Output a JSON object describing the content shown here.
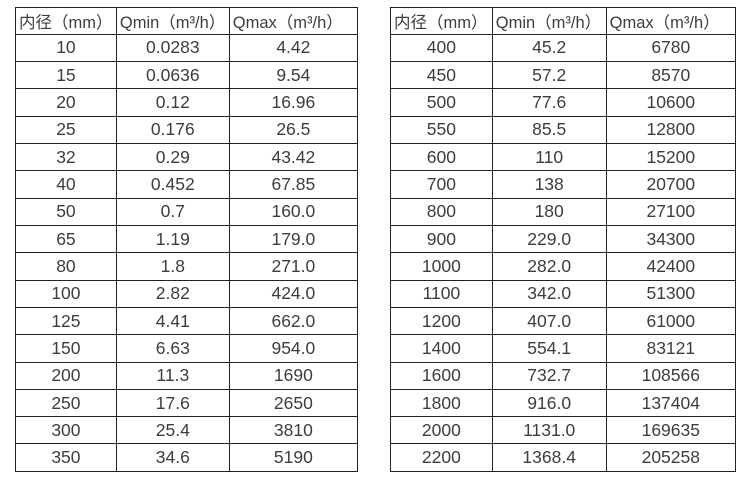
{
  "chart_data": [
    {
      "type": "table",
      "name": "flow-range-table-small-diameters",
      "columns": [
        "内径（mm）",
        "Qmin（m³/h）",
        "Qmax（m³/h）"
      ],
      "rows": [
        [
          "10",
          "0.0283",
          "4.42"
        ],
        [
          "15",
          "0.0636",
          "9.54"
        ],
        [
          "20",
          "0.12",
          "16.96"
        ],
        [
          "25",
          "0.176",
          "26.5"
        ],
        [
          "32",
          "0.29",
          "43.42"
        ],
        [
          "40",
          "0.452",
          "67.85"
        ],
        [
          "50",
          "0.7",
          "160.0"
        ],
        [
          "65",
          "1.19",
          "179.0"
        ],
        [
          "80",
          "1.8",
          "271.0"
        ],
        [
          "100",
          "2.82",
          "424.0"
        ],
        [
          "125",
          "4.41",
          "662.0"
        ],
        [
          "150",
          "6.63",
          "954.0"
        ],
        [
          "200",
          "11.3",
          "1690"
        ],
        [
          "250",
          "17.6",
          "2650"
        ],
        [
          "300",
          "25.4",
          "3810"
        ],
        [
          "350",
          "34.6",
          "5190"
        ]
      ]
    },
    {
      "type": "table",
      "name": "flow-range-table-large-diameters",
      "columns": [
        "内径（mm）",
        "Qmin（m³/h）",
        "Qmax（m³/h）"
      ],
      "rows": [
        [
          "400",
          "45.2",
          "6780"
        ],
        [
          "450",
          "57.2",
          "8570"
        ],
        [
          "500",
          "77.6",
          "10600"
        ],
        [
          "550",
          "85.5",
          "12800"
        ],
        [
          "600",
          "110",
          "15200"
        ],
        [
          "700",
          "138",
          "20700"
        ],
        [
          "800",
          "180",
          "27100"
        ],
        [
          "900",
          "229.0",
          "34300"
        ],
        [
          "1000",
          "282.0",
          "42400"
        ],
        [
          "1100",
          "342.0",
          "51300"
        ],
        [
          "1200",
          "407.0",
          "61000"
        ],
        [
          "1400",
          "554.1",
          "83121"
        ],
        [
          "1600",
          "732.7",
          "108566"
        ],
        [
          "1800",
          "916.0",
          "137404"
        ],
        [
          "2000",
          "1131.0",
          "169635"
        ],
        [
          "2200",
          "1368.4",
          "205258"
        ]
      ]
    }
  ],
  "colors": {
    "text": "#3d3d3d",
    "border": "#222222",
    "background": "#ffffff"
  }
}
